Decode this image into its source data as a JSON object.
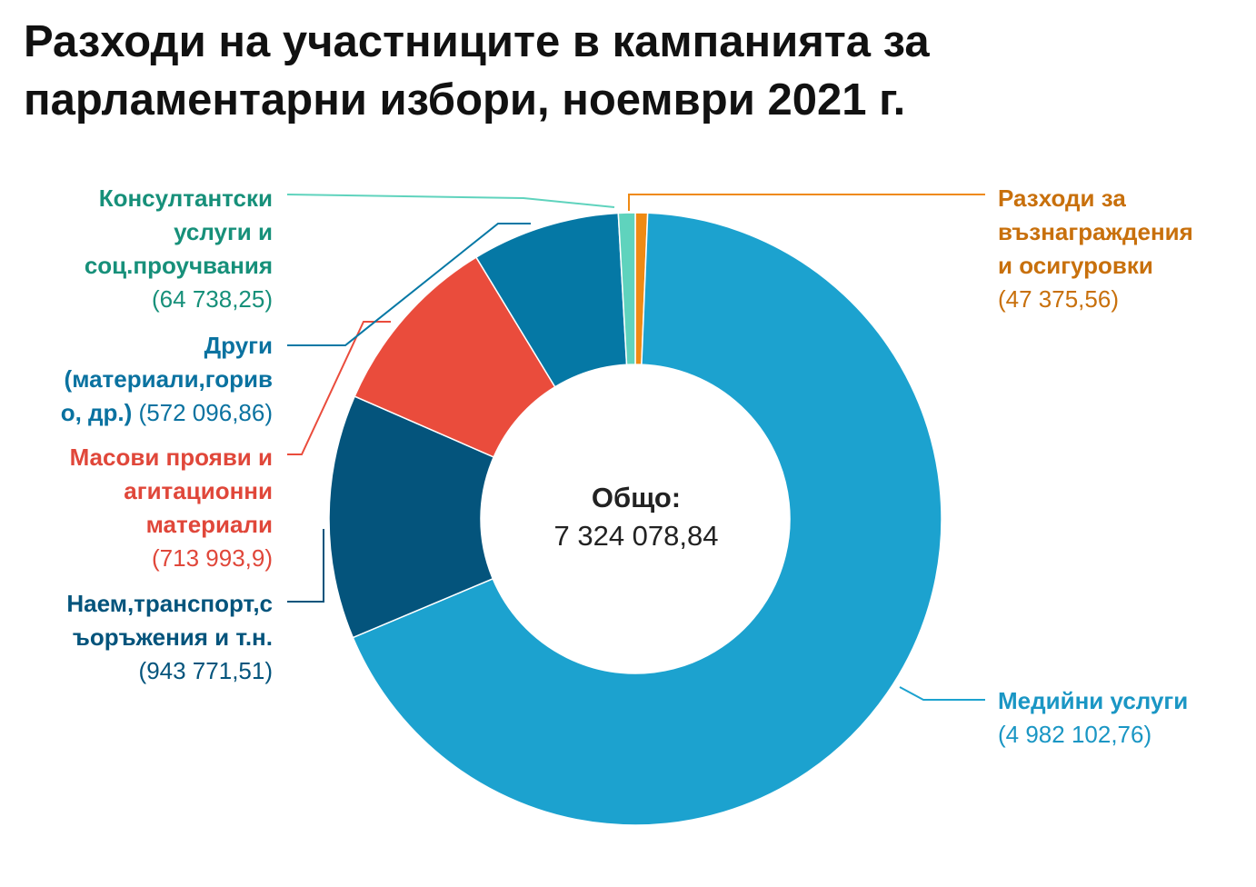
{
  "title": "Разходи на участниците в кампанията за парламентарни избори, ноември 2021 г.",
  "center": {
    "label": "Общо:",
    "value": "7 324 078,84"
  },
  "chart_data": {
    "type": "pie",
    "donut": true,
    "title": "Разходи на участниците в кампанията за парламентарни избори, ноември 2021 г.",
    "total_label": "Общо:",
    "total": 7324078.84,
    "slices": [
      {
        "name": "Разходи за възнаграждения и осигуровки",
        "value": 47375.56,
        "value_label": "(47 375,56)",
        "color": "#ef8a14"
      },
      {
        "name": "Медийни услуги",
        "value": 4982102.76,
        "value_label": "(4 982 102,76)",
        "color": "#1ca2cf"
      },
      {
        "name": "Наем,транспорт,съоръжения и т.н.",
        "value": 943771.51,
        "value_label": "(943 771,51)",
        "color": "#04547c"
      },
      {
        "name": "Масови прояви и агитационни материали",
        "value": 713993.9,
        "value_label": "(713 993,9)",
        "color": "#ea4c3c"
      },
      {
        "name": "Други (материали,гориво, др.)",
        "value": 572096.86,
        "value_label": "(572 096,86)",
        "color": "#0578a5"
      },
      {
        "name": "Консултантски услуги и соц.проучвания",
        "value": 64738.25,
        "value_label": "(64 738,25)",
        "color": "#5fd3bd"
      }
    ]
  },
  "labels": {
    "pay": {
      "name": "Разходи за въз­награждения и осигуровки",
      "value": "(47 375,56)",
      "color": "#c8700c"
    },
    "media": {
      "name": "Медийни услуги",
      "value": "(4 982 102,76)",
      "color": "#1a96c4"
    },
    "rent": {
      "name": "Наем,транспорт,съоръжения и т.н.",
      "value": "(943 771,51)",
      "color": "#04547c"
    },
    "mass": {
      "name": "Масови прояви и агитационни материали",
      "value": "(713 993,9)",
      "color": "#e0473a"
    },
    "other": {
      "name": "Други (материали,гориво, др.)",
      "value": "(572 096,86)",
      "color": "#0a72a0"
    },
    "consult": {
      "name": "Консултантски услуги и соц.проучвания",
      "value": "(64 738,25)",
      "color": "#17907a"
    }
  }
}
